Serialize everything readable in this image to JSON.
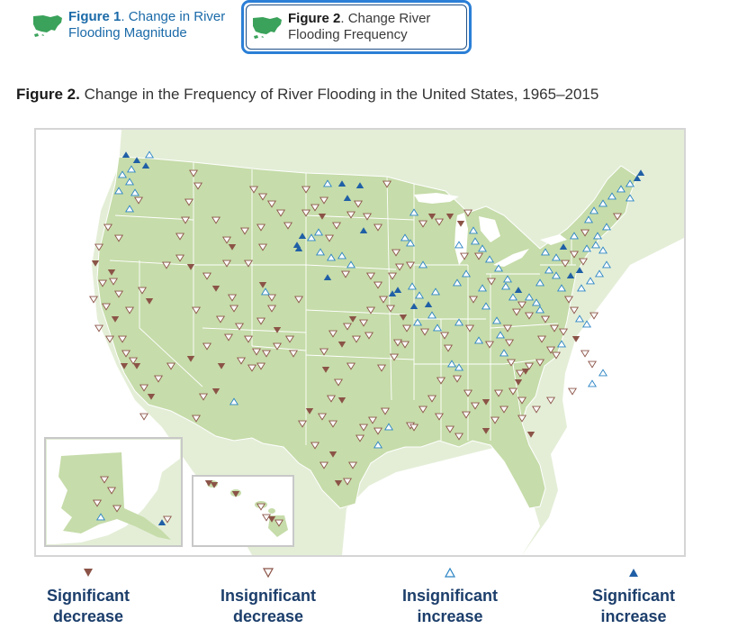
{
  "tabs": [
    {
      "fig": "Figure 1",
      "rest": ". Change in River",
      "rest2": "Flooding Magnitude"
    },
    {
      "fig": "Figure 2",
      "rest": ". Change River",
      "rest2": "Flooding Frequency"
    }
  ],
  "figure_title": {
    "prefix": "Figure 2.",
    "text": " Change in the Frequency of River Flooding in the United States, 1965–2015"
  },
  "legend": [
    {
      "line1": "Significant",
      "line2": "decrease",
      "symbol": "triangle-down-filled",
      "color": "#8b5347"
    },
    {
      "line1": "Insignificant",
      "line2": "decrease",
      "symbol": "triangle-down-outline",
      "color": "#8b5347"
    },
    {
      "line1": "Insignificant",
      "line2": "increase",
      "symbol": "triangle-up-outline",
      "color": "#2a84c4"
    },
    {
      "line1": "Significant",
      "line2": "increase",
      "symbol": "triangle-up-filled",
      "color": "#1f5fa6"
    }
  ],
  "colors": {
    "land": "#c6dcaa",
    "water": "#ffffff",
    "outside": "#e3edd6",
    "decrease": "#8b5347",
    "increase": "#2a84c4",
    "sig_increase": "#1f5fa6",
    "tab_border": "#2b7fd6"
  }
}
